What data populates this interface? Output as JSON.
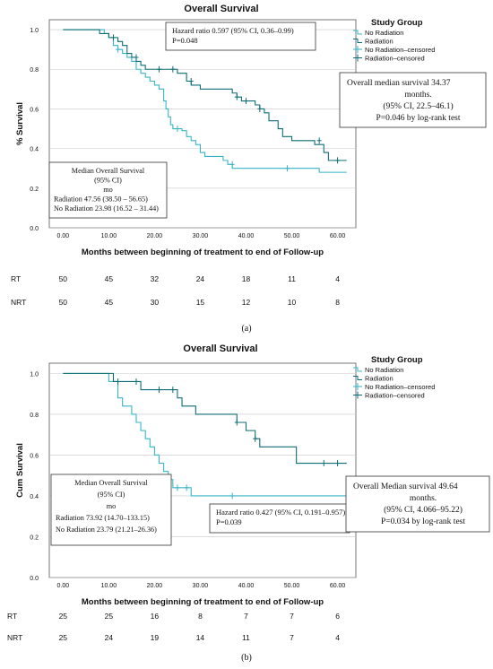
{
  "chart_data": [
    {
      "type": "line",
      "panel_label": "(a)",
      "title": "Overall Survival",
      "xlabel": "Months between beginning of treatment to end of Follow-up",
      "ylabel": "% Survival",
      "xlim": [
        -3,
        64
      ],
      "ylim": [
        0,
        1.05
      ],
      "x_ticks": [
        "0.00",
        "10.00",
        "20.00",
        "30.00",
        "40.00",
        "50.00",
        "60.00"
      ],
      "y_ticks": [
        "0.0",
        "0.2",
        "0.4",
        "0.6",
        "0.8",
        "1.0"
      ],
      "legend_title": "Study Group",
      "legend_entries": [
        "No Radiation",
        "Radiation",
        "No Radiation–censored",
        "Radiation–censored"
      ],
      "colors": {
        "No Radiation": "#37b5c8",
        "Radiation": "#0e6e74"
      },
      "annotations": {
        "hazard": [
          "Hazard ratio 0.597 (95% CI, 0.36–0.99)",
          "P=0.048"
        ],
        "overall": [
          "Overall median survival 34.37",
          "months.",
          "(95% CI, 22.5–46.1)",
          "P=0.046 by log-rank test"
        ],
        "median": [
          "Median Overall Survival",
          "(95% CI)",
          "mo",
          "Radiation 47.56 (38.50 – 56.65)",
          "No Radiation 23.98 (16.52 – 31.44)"
        ]
      },
      "series": [
        {
          "name": "No Radiation",
          "steps": [
            [
              0,
              1.0
            ],
            [
              9,
              0.98
            ],
            [
              10,
              0.96
            ],
            [
              11,
              0.92
            ],
            [
              12,
              0.9
            ],
            [
              13,
              0.88
            ],
            [
              14,
              0.86
            ],
            [
              15,
              0.84
            ],
            [
              16,
              0.8
            ],
            [
              17,
              0.78
            ],
            [
              18,
              0.76
            ],
            [
              19,
              0.74
            ],
            [
              20,
              0.72
            ],
            [
              21,
              0.7
            ],
            [
              22,
              0.64
            ],
            [
              22.5,
              0.6
            ],
            [
              23,
              0.56
            ],
            [
              23.5,
              0.52
            ],
            [
              24,
              0.5
            ],
            [
              26,
              0.49
            ],
            [
              27,
              0.46
            ],
            [
              28,
              0.44
            ],
            [
              29,
              0.42
            ],
            [
              30,
              0.38
            ],
            [
              31,
              0.36
            ],
            [
              35,
              0.34
            ],
            [
              36,
              0.32
            ],
            [
              37,
              0.3
            ],
            [
              56,
              0.28
            ],
            [
              62,
              0.28
            ]
          ],
          "censored": [
            [
              12,
              0.9
            ],
            [
              25,
              0.5
            ],
            [
              37,
              0.32
            ],
            [
              49,
              0.3
            ]
          ]
        },
        {
          "name": "Radiation",
          "steps": [
            [
              0,
              1.0
            ],
            [
              8,
              0.98
            ],
            [
              10,
              0.96
            ],
            [
              12,
              0.94
            ],
            [
              13,
              0.92
            ],
            [
              14,
              0.88
            ],
            [
              15,
              0.86
            ],
            [
              16,
              0.84
            ],
            [
              17,
              0.82
            ],
            [
              18,
              0.8
            ],
            [
              25,
              0.78
            ],
            [
              27,
              0.74
            ],
            [
              28,
              0.72
            ],
            [
              30,
              0.7
            ],
            [
              37,
              0.68
            ],
            [
              38,
              0.66
            ],
            [
              39,
              0.64
            ],
            [
              42,
              0.62
            ],
            [
              43,
              0.6
            ],
            [
              44,
              0.58
            ],
            [
              45,
              0.54
            ],
            [
              47,
              0.5
            ],
            [
              48,
              0.46
            ],
            [
              50,
              0.44
            ],
            [
              55,
              0.42
            ],
            [
              57,
              0.38
            ],
            [
              58,
              0.34
            ],
            [
              62,
              0.34
            ]
          ],
          "censored": [
            [
              11,
              0.96
            ],
            [
              16,
              0.86
            ],
            [
              21,
              0.8
            ],
            [
              24,
              0.8
            ],
            [
              28,
              0.74
            ],
            [
              38,
              0.66
            ],
            [
              40,
              0.64
            ],
            [
              43,
              0.6
            ],
            [
              56,
              0.44
            ],
            [
              60,
              0.34
            ]
          ]
        }
      ],
      "risk_table": {
        "rows": [
          {
            "label": "RT",
            "values": [
              "50",
              "45",
              "32",
              "24",
              "18",
              "11",
              "4"
            ]
          },
          {
            "label": "NRT",
            "values": [
              "50",
              "45",
              "30",
              "15",
              "12",
              "10",
              "8"
            ]
          }
        ]
      }
    },
    {
      "type": "line",
      "panel_label": "(b)",
      "title": "Overall Survival",
      "xlabel": "Months between beginning of treatment to end of Follow-up",
      "ylabel": "Cum Survival",
      "xlim": [
        -3,
        64
      ],
      "ylim": [
        0,
        1.05
      ],
      "x_ticks": [
        "0.00",
        "10.00",
        "20.00",
        "30.00",
        "40.00",
        "50.00",
        "60.00"
      ],
      "y_ticks": [
        "0.0",
        "0.2",
        "0.4",
        "0.6",
        "0.8",
        "1.0"
      ],
      "legend_title": "Study Group",
      "legend_entries": [
        "No Radiation",
        "Radiation",
        "No Radiation–censored",
        "Radiation–censored"
      ],
      "colors": {
        "No Radiation": "#37b5c8",
        "Radiation": "#0e6e74"
      },
      "annotations": {
        "hazard": [
          "Hazard ratio 0.427 (95% CI, 0.191–0.957)",
          "P=0.039"
        ],
        "overall": [
          "Overall Median survival 49.64",
          "months.",
          "(95% CI, 4.066–95.22)",
          "P=0.034 by log-rank test"
        ],
        "median": [
          "Median Overall Survival",
          "(95% CI)",
          "mo",
          "Radiation 73.92 (14.70–133.15)",
          "No Radiation 23.79 (21.21–26.36)"
        ]
      },
      "series": [
        {
          "name": "No Radiation",
          "steps": [
            [
              0,
              1.0
            ],
            [
              10,
              0.96
            ],
            [
              12,
              0.88
            ],
            [
              13,
              0.84
            ],
            [
              15,
              0.8
            ],
            [
              16,
              0.76
            ],
            [
              17,
              0.72
            ],
            [
              18,
              0.68
            ],
            [
              19,
              0.64
            ],
            [
              20,
              0.6
            ],
            [
              21,
              0.56
            ],
            [
              22,
              0.52
            ],
            [
              23,
              0.48
            ],
            [
              24,
              0.44
            ],
            [
              28,
              0.4
            ],
            [
              62,
              0.4
            ]
          ],
          "censored": [
            [
              25,
              0.44
            ],
            [
              27,
              0.44
            ],
            [
              37,
              0.4
            ]
          ]
        },
        {
          "name": "Radiation",
          "steps": [
            [
              0,
              1.0
            ],
            [
              11,
              0.96
            ],
            [
              17,
              0.92
            ],
            [
              25,
              0.88
            ],
            [
              26,
              0.84
            ],
            [
              29,
              0.8
            ],
            [
              38,
              0.76
            ],
            [
              40,
              0.72
            ],
            [
              42,
              0.68
            ],
            [
              43,
              0.64
            ],
            [
              51,
              0.56
            ],
            [
              62,
              0.56
            ]
          ],
          "censored": [
            [
              12,
              0.96
            ],
            [
              16,
              0.96
            ],
            [
              21,
              0.92
            ],
            [
              24,
              0.92
            ],
            [
              38,
              0.76
            ],
            [
              42,
              0.68
            ],
            [
              57,
              0.56
            ],
            [
              60,
              0.56
            ]
          ]
        }
      ],
      "risk_table": {
        "rows": [
          {
            "label": "RT",
            "values": [
              "25",
              "25",
              "16",
              "8",
              "7",
              "7",
              "6"
            ]
          },
          {
            "label": "NRT",
            "values": [
              "25",
              "24",
              "19",
              "14",
              "11",
              "7",
              "4"
            ]
          }
        ]
      }
    }
  ]
}
